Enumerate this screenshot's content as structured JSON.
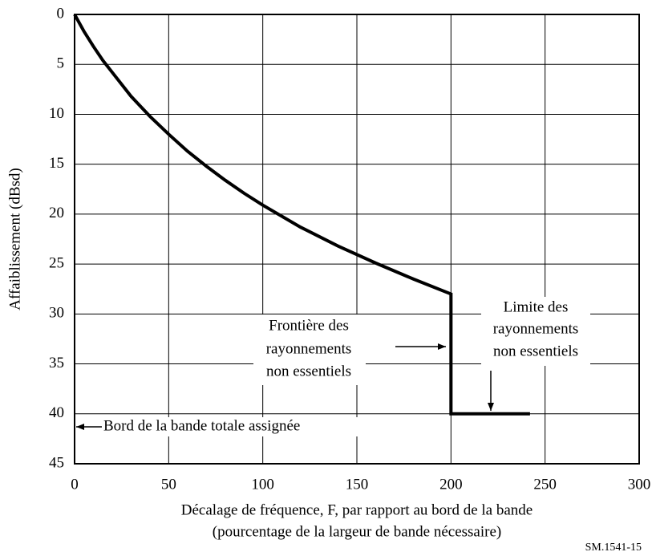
{
  "chart_data": {
    "type": "line",
    "x_label": [
      "Décalage de fréquence, F, par rapport au bord de la bande",
      "(pourcentage de la largeur de bande nécessaire)"
    ],
    "y_label": "Affaiblissement (dBsd)",
    "x": [
      0,
      5,
      10,
      15,
      20,
      30,
      40,
      50,
      60,
      70,
      80,
      90,
      100,
      120,
      140,
      160,
      180,
      200,
      200,
      242
    ],
    "series": [
      {
        "color": "#000000",
        "values": [
          0,
          1.7,
          3.2,
          4.6,
          5.8,
          8.2,
          10.2,
          12.0,
          13.7,
          15.2,
          16.6,
          17.9,
          19.1,
          21.3,
          23.2,
          24.9,
          26.5,
          28,
          40,
          40
        ]
      }
    ],
    "xlim": [
      0,
      300
    ],
    "xticks": [
      0,
      50,
      100,
      150,
      200,
      250,
      300
    ],
    "ylim": [
      0,
      45
    ],
    "yticks": [
      0,
      5,
      10,
      15,
      20,
      25,
      30,
      35,
      40,
      45
    ],
    "y_inverted": true,
    "grid": true,
    "annotations": [
      {
        "lines": [
          "Frontière des",
          "rayonnements",
          "non essentiels"
        ]
      },
      {
        "lines": [
          "Limite des",
          "rayonnements",
          "non essentiels"
        ]
      },
      {
        "lines": [
          "Bord de la bande totale assignée"
        ]
      }
    ],
    "footer": "SM.1541-15"
  }
}
